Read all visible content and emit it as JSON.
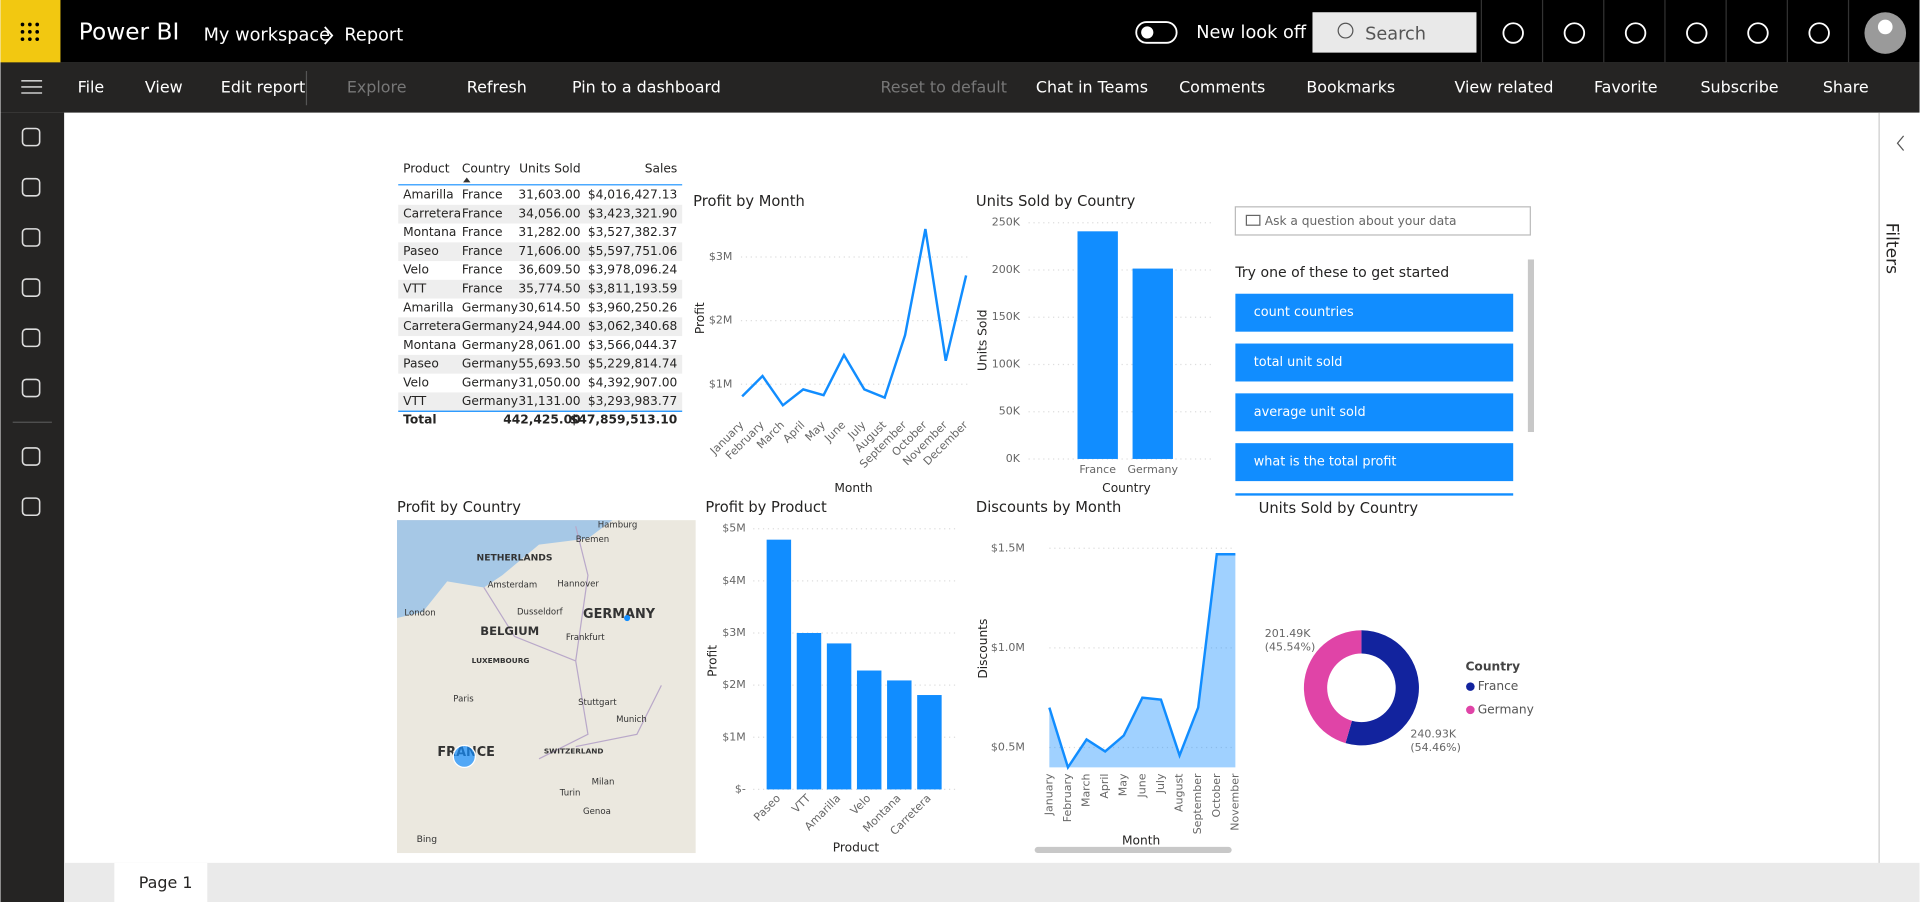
{
  "header": {
    "app": "Power BI",
    "breadcrumb": [
      "My workspace",
      "Report"
    ],
    "toggle": "New look off",
    "search": "Search"
  },
  "toolbar": {
    "left": [
      "File",
      "View",
      "Edit report",
      "Explore",
      "Refresh",
      "Pin to a dashboard"
    ],
    "right": [
      "Reset to default",
      "Chat in Teams",
      "Comments",
      "Bookmarks",
      "View related",
      "Favorite",
      "Subscribe",
      "Share"
    ]
  },
  "table": {
    "columns": [
      "Product",
      "Country",
      "Units Sold",
      "Sales"
    ],
    "rows": [
      [
        "Amarilla",
        "France",
        "31,603.00",
        "$4,016,427.13"
      ],
      [
        "Carretera",
        "France",
        "34,056.00",
        "$3,423,321.90"
      ],
      [
        "Montana",
        "France",
        "31,282.00",
        "$3,527,382.37"
      ],
      [
        "Paseo",
        "France",
        "71,606.00",
        "$5,597,751.06"
      ],
      [
        "Velo",
        "France",
        "36,609.50",
        "$3,978,096.24"
      ],
      [
        "VTT",
        "France",
        "35,774.50",
        "$3,811,193.59"
      ],
      [
        "Amarilla",
        "Germany",
        "30,614.50",
        "$3,960,250.26"
      ],
      [
        "Carretera",
        "Germany",
        "24,944.00",
        "$3,062,340.68"
      ],
      [
        "Montana",
        "Germany",
        "28,061.00",
        "$3,566,044.37"
      ],
      [
        "Paseo",
        "Germany",
        "55,693.50",
        "$5,229,814.74"
      ],
      [
        "Velo",
        "Germany",
        "31,050.00",
        "$4,392,907.00"
      ],
      [
        "VTT",
        "Germany",
        "31,131.00",
        "$3,293,983.77"
      ]
    ],
    "total": {
      "label": "Total",
      "units": "442,425.00",
      "sales": "$47,859,513.10"
    }
  },
  "charts": {
    "profit_by_month": {
      "type": "line",
      "title": "Profit by Month",
      "x_label": "Month",
      "y_label": "Profit",
      "color": "#118dff",
      "categories": [
        "January",
        "February",
        "March",
        "April",
        "May",
        "June",
        "July",
        "August",
        "September",
        "October",
        "November",
        "December"
      ],
      "values": [
        0.81,
        1.13,
        0.67,
        0.92,
        0.83,
        1.46,
        0.92,
        0.79,
        1.77,
        3.44,
        1.37,
        2.71
      ],
      "ylim": [
        0.5,
        3.5
      ],
      "yticks": [
        {
          "value": 1,
          "label": "$1M"
        },
        {
          "value": 2,
          "label": "$2M"
        },
        {
          "value": 3,
          "label": "$3M"
        }
      ],
      "grid": true
    },
    "units_by_country": {
      "type": "bar",
      "title": "Units Sold by Country",
      "x_label": "Country",
      "y_label": "Units Sold",
      "color": "#118dff",
      "categories": [
        "France",
        "Germany"
      ],
      "values": [
        240930,
        201490
      ],
      "ylim": [
        0,
        250000
      ],
      "yticks": [
        {
          "value": 0,
          "label": "0K"
        },
        {
          "value": 50000,
          "label": "50K"
        },
        {
          "value": 100000,
          "label": "100K"
        },
        {
          "value": 150000,
          "label": "150K"
        },
        {
          "value": 200000,
          "label": "200K"
        },
        {
          "value": 250000,
          "label": "250K"
        }
      ],
      "grid": true
    },
    "profit_by_product": {
      "type": "bar",
      "title": "Profit by Product",
      "x_label": "Product",
      "y_label": "Profit",
      "color": "#118dff",
      "categories": [
        "Paseo",
        "VTT",
        "Amarilla",
        "Velo",
        "Montana",
        "Carretera"
      ],
      "values": [
        4.79,
        3.0,
        2.8,
        2.28,
        2.09,
        1.81
      ],
      "ylim": [
        0,
        5
      ],
      "yticks": [
        {
          "value": 0,
          "label": "$-"
        },
        {
          "value": 1,
          "label": "$1M"
        },
        {
          "value": 2,
          "label": "$2M"
        },
        {
          "value": 3,
          "label": "$3M"
        },
        {
          "value": 4,
          "label": "$4M"
        },
        {
          "value": 5,
          "label": "$5M"
        }
      ],
      "grid": true
    },
    "discounts_by_month": {
      "type": "area",
      "title": "Discounts by Month",
      "x_label": "Month",
      "y_label": "Discounts",
      "color": "#118dff",
      "categories": [
        "January",
        "February",
        "March",
        "April",
        "May",
        "June",
        "July",
        "August",
        "September",
        "October",
        "November"
      ],
      "values": [
        0.7,
        0.4,
        0.54,
        0.48,
        0.56,
        0.75,
        0.74,
        0.46,
        0.7,
        1.47,
        1.47
      ],
      "ylim": [
        0.4,
        1.5
      ],
      "yticks": [
        {
          "value": 0.5,
          "label": "$0.5M"
        },
        {
          "value": 1,
          "label": "$1.0M"
        },
        {
          "value": 1.5,
          "label": "$1.5M"
        }
      ],
      "grid": true
    },
    "units_donut": {
      "type": "donut",
      "title": "Units Sold by Country",
      "legend_title": "Country",
      "categories": [
        "France",
        "Germany"
      ],
      "values": [
        240930,
        201490
      ],
      "value_labels": [
        "240.93K",
        "201.49K"
      ],
      "percent_labels": [
        "(54.46%)",
        "(45.54%)"
      ],
      "colors": [
        "#12239e",
        "#e044a7"
      ]
    }
  },
  "map": {
    "title": "Profit by Country",
    "labels": [
      "Hamburg",
      "Bremen",
      "NETHERLANDS",
      "Amsterdam",
      "Hannover",
      "London",
      "Dusseldorf",
      "GERMANY",
      "BELGIUM",
      "Frankfurt",
      "LUXEMBOURG",
      "Paris",
      "Stuttgart",
      "Munich",
      "FRANCE",
      "SWITZERLAND",
      "Milan",
      "Turin",
      "Genoa",
      "Bing"
    ]
  },
  "qna": {
    "placeholder": "Ask a question about your data",
    "prompt": "Try one of these to get started",
    "suggestions": [
      "count countries",
      "total unit sold",
      "average unit sold",
      "what is the total profit"
    ]
  },
  "filters": "Filters",
  "page_tab": "Page 1"
}
